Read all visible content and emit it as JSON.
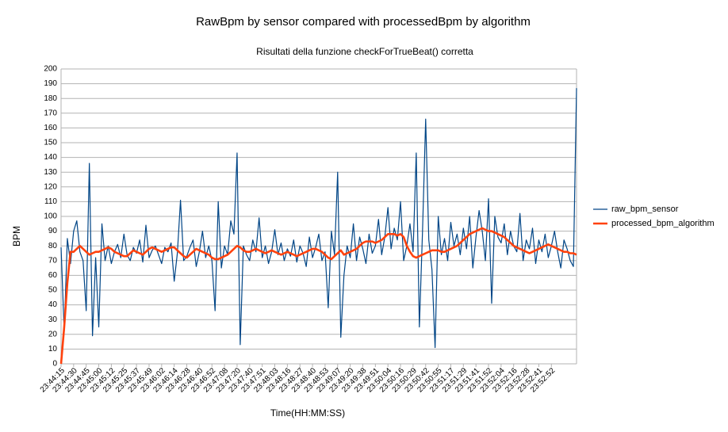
{
  "chart_data": {
    "type": "line",
    "title": "RawBpm by sensor compared with processedBpm by algorithm",
    "subtitle": "Risultati della funzione checkForTrueBeat() corretta",
    "x_label": "Time(HH:MM:SS)",
    "y_label": "BPM",
    "categories": [
      "23:44:15",
      null,
      null,
      null,
      "23:44:30",
      null,
      null,
      null,
      "23:44:45",
      null,
      null,
      null,
      "23:45:00",
      null,
      null,
      null,
      "23:45:12",
      null,
      null,
      null,
      "23:45:25",
      null,
      null,
      null,
      "23:45:37",
      null,
      null,
      null,
      "23:45:49",
      null,
      null,
      null,
      "23:46:02",
      null,
      null,
      null,
      "23:46:14",
      null,
      null,
      null,
      "23:46:28",
      null,
      null,
      null,
      "23:46:40",
      null,
      null,
      null,
      "23:46:52",
      null,
      null,
      null,
      "23:47:08",
      null,
      null,
      null,
      "23:47:20",
      null,
      null,
      null,
      "23:47:40",
      null,
      null,
      null,
      "23:47:51",
      null,
      null,
      null,
      "23:48:03",
      null,
      null,
      null,
      "23:48:16",
      null,
      null,
      null,
      "23:48:27",
      null,
      null,
      null,
      "23:48:40",
      null,
      null,
      null,
      "23:48:53",
      null,
      null,
      null,
      "23:49:07",
      null,
      null,
      null,
      "23:49:20",
      null,
      null,
      null,
      "23:49:38",
      null,
      null,
      null,
      "23:49:51",
      null,
      null,
      null,
      "23:50:04",
      null,
      null,
      null,
      "23:50:16",
      null,
      null,
      null,
      "23:50:29",
      null,
      null,
      null,
      "23:50:42",
      null,
      null,
      null,
      "23:50:55",
      null,
      null,
      null,
      "23:51:17",
      null,
      null,
      null,
      "23:51:29",
      null,
      null,
      null,
      "23:51:41",
      null,
      null,
      null,
      "23:51:52",
      null,
      null,
      null,
      "23:52:04",
      null,
      null,
      null,
      "23:52:16",
      null,
      null,
      null,
      "23:52:28",
      null,
      null,
      null,
      "23:52:41",
      null,
      null,
      null,
      "23:52:52",
      null,
      null,
      null,
      null,
      null,
      null,
      null,
      null
    ],
    "series": [
      {
        "name": "raw_bpm_sensor",
        "color": "#004586",
        "width": 1.2,
        "values": [
          79,
          22,
          85,
          68,
          90,
          97,
          76,
          70,
          36,
          136,
          19,
          72,
          25,
          95,
          70,
          80,
          68,
          76,
          81,
          72,
          88,
          74,
          70,
          79,
          75,
          84,
          69,
          94,
          72,
          77,
          80,
          74,
          68,
          79,
          76,
          82,
          56,
          75,
          111,
          70,
          73,
          79,
          84,
          66,
          76,
          90,
          72,
          80,
          70,
          36,
          110,
          65,
          80,
          74,
          97,
          88,
          143,
          13,
          80,
          74,
          70,
          84,
          76,
          99,
          72,
          80,
          68,
          76,
          91,
          74,
          82,
          70,
          78,
          73,
          84,
          69,
          80,
          75,
          66,
          86,
          72,
          79,
          88,
          70,
          76,
          38,
          90,
          74,
          130,
          18,
          60,
          80,
          72,
          95,
          70,
          86,
          78,
          68,
          88,
          75,
          80,
          98,
          74,
          86,
          106,
          78,
          92,
          84,
          110,
          70,
          80,
          95,
          76,
          143,
          25,
          90,
          166,
          84,
          64,
          11,
          100,
          74,
          85,
          70,
          96,
          80,
          88,
          74,
          92,
          78,
          100,
          65,
          86,
          104,
          90,
          70,
          112,
          41,
          100,
          86,
          82,
          95,
          74,
          90,
          80,
          76,
          102,
          70,
          84,
          78,
          92,
          68,
          84,
          76,
          88,
          72,
          80,
          90,
          76,
          65,
          84,
          78,
          70,
          66,
          187
        ]
      },
      {
        "name": "processed_bpm_algorithm",
        "color": "#ff420e",
        "width": 2.6,
        "values": [
          0,
          25,
          55,
          76,
          76,
          78,
          80,
          78,
          76,
          74,
          75,
          76,
          76,
          77,
          78,
          79,
          78,
          76,
          75,
          74,
          73,
          73,
          75,
          77,
          76,
          75,
          74,
          76,
          78,
          79,
          78,
          77,
          76,
          77,
          78,
          79,
          79,
          77,
          75,
          73,
          72,
          74,
          76,
          78,
          77,
          76,
          75,
          74,
          72,
          71,
          71,
          72,
          73,
          74,
          76,
          78,
          80,
          79,
          77,
          76,
          76,
          77,
          78,
          77,
          76,
          75,
          76,
          77,
          76,
          75,
          74,
          75,
          76,
          75,
          74,
          73,
          74,
          75,
          76,
          77,
          78,
          78,
          77,
          76,
          74,
          72,
          71,
          73,
          75,
          77,
          74,
          75,
          76,
          77,
          78,
          80,
          82,
          83,
          83,
          83,
          82,
          83,
          84,
          86,
          88,
          88,
          88,
          87,
          88,
          86,
          80,
          76,
          73,
          72,
          73,
          74,
          75,
          76,
          77,
          77,
          77,
          76,
          76,
          77,
          78,
          79,
          80,
          82,
          84,
          86,
          88,
          89,
          90,
          91,
          92,
          91,
          90,
          90,
          89,
          88,
          87,
          86,
          84,
          82,
          80,
          79,
          78,
          77,
          76,
          75,
          76,
          77,
          78,
          79,
          80,
          81,
          80,
          79,
          78,
          77,
          76,
          76,
          75,
          75,
          74
        ]
      }
    ],
    "ylim": [
      0,
      200
    ],
    "yticks": [
      0,
      10,
      20,
      30,
      40,
      50,
      60,
      70,
      80,
      90,
      100,
      110,
      120,
      130,
      140,
      150,
      160,
      170,
      180,
      190,
      200
    ],
    "grid": true,
    "legend": "right"
  }
}
